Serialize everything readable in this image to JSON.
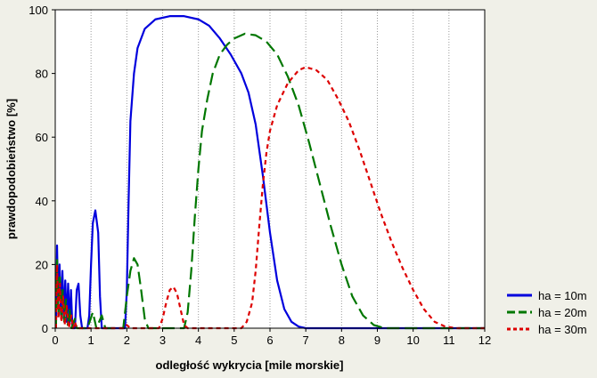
{
  "chart_data": {
    "type": "line",
    "xlabel": "odległość wykrycia [mile morskie]",
    "ylabel": "prawdopodobieństwo [%]",
    "xlim": [
      0,
      12
    ],
    "ylim": [
      0,
      100
    ],
    "x_ticks": [
      0,
      1,
      2,
      3,
      4,
      5,
      6,
      7,
      8,
      9,
      10,
      11,
      12
    ],
    "y_ticks": [
      0,
      20,
      40,
      60,
      80,
      100
    ],
    "grid": "vertical dotted",
    "legend_position": "right-bottom, outside plot",
    "series": [
      {
        "name": "ha = 10m",
        "color": "#0000dd",
        "style": "solid",
        "points": [
          [
            0.02,
            0
          ],
          [
            0.05,
            26
          ],
          [
            0.08,
            8
          ],
          [
            0.12,
            20
          ],
          [
            0.16,
            4
          ],
          [
            0.2,
            18
          ],
          [
            0.24,
            3
          ],
          [
            0.28,
            15
          ],
          [
            0.32,
            2
          ],
          [
            0.36,
            14
          ],
          [
            0.4,
            1
          ],
          [
            0.44,
            12
          ],
          [
            0.48,
            0
          ],
          [
            0.55,
            0
          ],
          [
            0.6,
            12
          ],
          [
            0.65,
            14
          ],
          [
            0.7,
            4
          ],
          [
            0.75,
            0
          ],
          [
            0.9,
            0
          ],
          [
            0.95,
            4
          ],
          [
            1.0,
            20
          ],
          [
            1.05,
            33
          ],
          [
            1.12,
            37
          ],
          [
            1.2,
            30
          ],
          [
            1.25,
            10
          ],
          [
            1.3,
            0
          ],
          [
            1.95,
            0
          ],
          [
            2.0,
            12
          ],
          [
            2.05,
            40
          ],
          [
            2.1,
            65
          ],
          [
            2.2,
            80
          ],
          [
            2.3,
            88
          ],
          [
            2.5,
            94
          ],
          [
            2.8,
            97
          ],
          [
            3.2,
            98
          ],
          [
            3.6,
            98
          ],
          [
            4.0,
            97
          ],
          [
            4.3,
            95
          ],
          [
            4.6,
            91
          ],
          [
            4.9,
            86
          ],
          [
            5.2,
            80
          ],
          [
            5.4,
            74
          ],
          [
            5.6,
            64
          ],
          [
            5.8,
            48
          ],
          [
            6.0,
            30
          ],
          [
            6.2,
            15
          ],
          [
            6.4,
            6
          ],
          [
            6.6,
            2
          ],
          [
            6.8,
            0.5
          ],
          [
            7.0,
            0
          ],
          [
            12,
            0
          ]
        ]
      },
      {
        "name": "ha = 20m",
        "color": "#007700",
        "style": "dashed",
        "points": [
          [
            0.02,
            0
          ],
          [
            0.05,
            22
          ],
          [
            0.09,
            4
          ],
          [
            0.13,
            16
          ],
          [
            0.17,
            2
          ],
          [
            0.21,
            12
          ],
          [
            0.25,
            2
          ],
          [
            0.3,
            9
          ],
          [
            0.35,
            1
          ],
          [
            0.4,
            6
          ],
          [
            0.45,
            0
          ],
          [
            0.55,
            3
          ],
          [
            0.6,
            0
          ],
          [
            0.9,
            0
          ],
          [
            1.05,
            5
          ],
          [
            1.15,
            0
          ],
          [
            1.3,
            4
          ],
          [
            1.4,
            0
          ],
          [
            1.9,
            0
          ],
          [
            2.0,
            10
          ],
          [
            2.1,
            18
          ],
          [
            2.2,
            22
          ],
          [
            2.3,
            20
          ],
          [
            2.4,
            12
          ],
          [
            2.5,
            3
          ],
          [
            2.6,
            0
          ],
          [
            3.6,
            0
          ],
          [
            3.7,
            5
          ],
          [
            3.8,
            18
          ],
          [
            3.9,
            35
          ],
          [
            4.0,
            50
          ],
          [
            4.1,
            62
          ],
          [
            4.25,
            72
          ],
          [
            4.4,
            80
          ],
          [
            4.6,
            86
          ],
          [
            4.8,
            89
          ],
          [
            5.0,
            91
          ],
          [
            5.3,
            92.5
          ],
          [
            5.6,
            92
          ],
          [
            5.9,
            90
          ],
          [
            6.2,
            86
          ],
          [
            6.5,
            79
          ],
          [
            6.8,
            70
          ],
          [
            7.1,
            58
          ],
          [
            7.4,
            45
          ],
          [
            7.7,
            32
          ],
          [
            8.0,
            20
          ],
          [
            8.3,
            10
          ],
          [
            8.6,
            4
          ],
          [
            8.9,
            1
          ],
          [
            9.2,
            0
          ],
          [
            12,
            0
          ]
        ]
      },
      {
        "name": "ha = 30m",
        "color": "#dd0000",
        "style": "dotted",
        "points": [
          [
            0.02,
            0
          ],
          [
            0.05,
            20
          ],
          [
            0.09,
            3
          ],
          [
            0.13,
            14
          ],
          [
            0.17,
            2
          ],
          [
            0.22,
            10
          ],
          [
            0.27,
            1
          ],
          [
            0.32,
            7
          ],
          [
            0.38,
            0
          ],
          [
            0.45,
            4
          ],
          [
            0.5,
            0
          ],
          [
            0.55,
            2
          ],
          [
            0.6,
            0
          ],
          [
            1.9,
            0
          ],
          [
            2.0,
            1
          ],
          [
            2.1,
            0
          ],
          [
            2.9,
            0
          ],
          [
            3.0,
            3
          ],
          [
            3.1,
            8
          ],
          [
            3.2,
            12
          ],
          [
            3.3,
            13
          ],
          [
            3.4,
            11
          ],
          [
            3.5,
            6
          ],
          [
            3.6,
            1
          ],
          [
            3.7,
            0
          ],
          [
            5.2,
            0
          ],
          [
            5.35,
            2
          ],
          [
            5.5,
            8
          ],
          [
            5.6,
            18
          ],
          [
            5.7,
            32
          ],
          [
            5.8,
            45
          ],
          [
            5.9,
            55
          ],
          [
            6.0,
            62
          ],
          [
            6.2,
            70
          ],
          [
            6.5,
            77
          ],
          [
            6.8,
            81
          ],
          [
            7.0,
            82
          ],
          [
            7.3,
            81
          ],
          [
            7.6,
            78
          ],
          [
            7.9,
            72
          ],
          [
            8.2,
            65
          ],
          [
            8.5,
            56
          ],
          [
            8.8,
            46
          ],
          [
            9.1,
            36
          ],
          [
            9.4,
            27
          ],
          [
            9.7,
            19
          ],
          [
            10.0,
            12
          ],
          [
            10.3,
            6
          ],
          [
            10.6,
            2
          ],
          [
            10.9,
            0.5
          ],
          [
            11.2,
            0
          ],
          [
            12,
            0
          ]
        ]
      }
    ]
  }
}
